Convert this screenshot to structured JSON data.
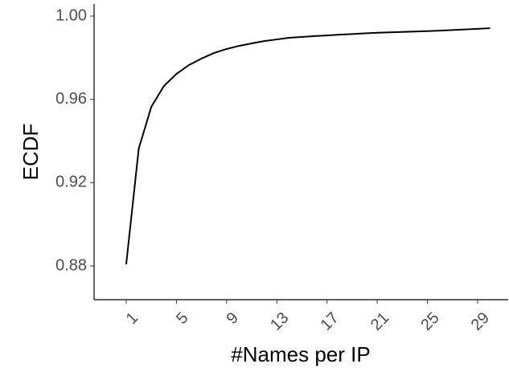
{
  "chart_data": {
    "type": "line",
    "x_label": "#Names per IP",
    "y_label": "ECDF",
    "x": [
      1,
      2,
      3,
      4,
      5,
      6,
      7,
      8,
      9,
      10,
      11,
      12,
      13,
      14,
      15,
      16,
      17,
      18,
      19,
      20,
      21,
      22,
      23,
      24,
      25,
      26,
      27,
      28,
      29,
      30
    ],
    "series": [
      {
        "color": "#000000",
        "values": [
          0.8808,
          0.9364,
          0.9564,
          0.9664,
          0.9722,
          0.9765,
          0.9796,
          0.9823,
          0.9842,
          0.9857,
          0.9869,
          0.988,
          0.9888,
          0.9896,
          0.99,
          0.9904,
          0.9907,
          0.9911,
          0.9914,
          0.9917,
          0.992,
          0.9922,
          0.9924,
          0.9926,
          0.9928,
          0.993,
          0.9933,
          0.9936,
          0.9939,
          0.9942
        ]
      }
    ],
    "xlim": [
      -1.56,
      31.44
    ],
    "xticks": [
      1,
      5,
      9,
      13,
      17,
      21,
      25,
      29
    ],
    "ylim": [
      0.8638,
      1.0058
    ],
    "yticks": [
      {
        "value": 1,
        "label": "1.00"
      },
      0.96,
      0.92,
      0.88
    ],
    "grid": false
  }
}
